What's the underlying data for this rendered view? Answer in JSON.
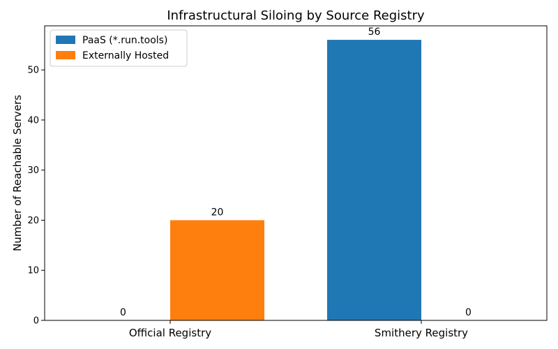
{
  "chart_data": {
    "type": "bar",
    "title": "Infrastructural Siloing by Source Registry",
    "xlabel": "",
    "ylabel": "Number of Reachable Servers",
    "categories": [
      "Official Registry",
      "Smithery Registry"
    ],
    "series": [
      {
        "name": "PaaS (*.run.tools)",
        "values": [
          0,
          56
        ],
        "color": "#1f77b4"
      },
      {
        "name": "Externally Hosted",
        "values": [
          20,
          0
        ],
        "color": "#ff7f0e"
      }
    ],
    "ylim": [
      0,
      58.8
    ],
    "yticks": [
      0,
      10,
      20,
      30,
      40,
      50
    ],
    "data_labels": true,
    "grid": false,
    "legend_position": "top-left"
  }
}
